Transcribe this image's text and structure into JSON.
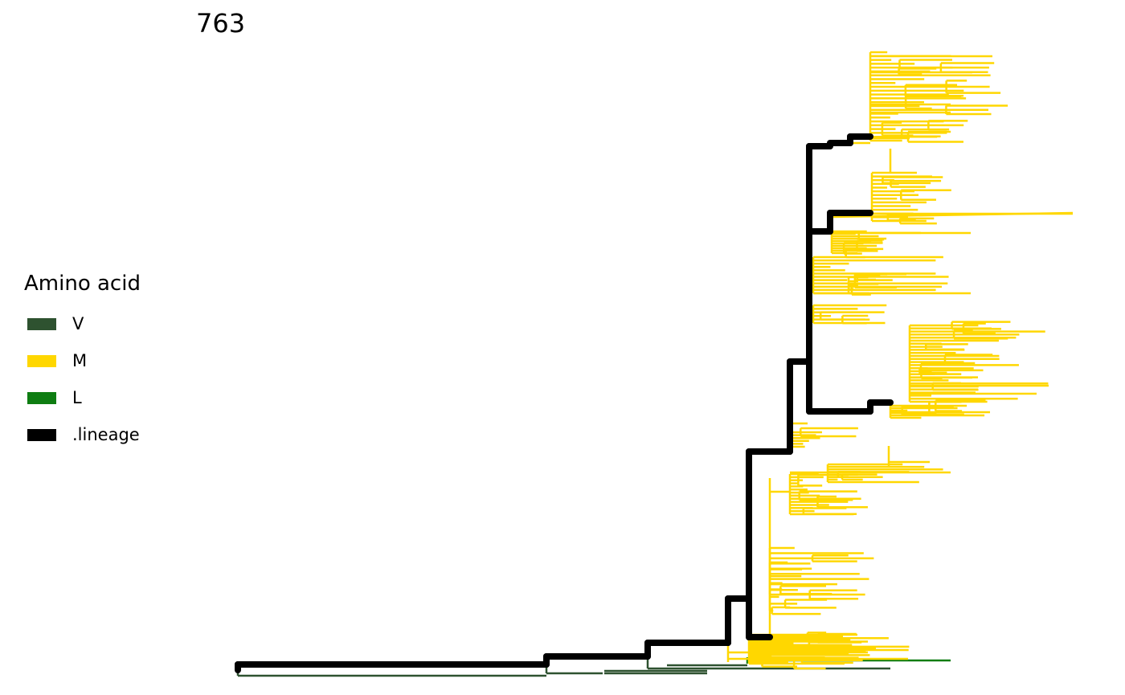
{
  "title": "763",
  "legend": {
    "title": "Amino acid",
    "items": [
      {
        "label": "V",
        "color": "#2e5230"
      },
      {
        "label": "M",
        "color": "#ffd700"
      },
      {
        "label": "L",
        "color": "#0e7d12"
      },
      {
        "label": ".lineage",
        "color": "#000000"
      }
    ]
  }
}
